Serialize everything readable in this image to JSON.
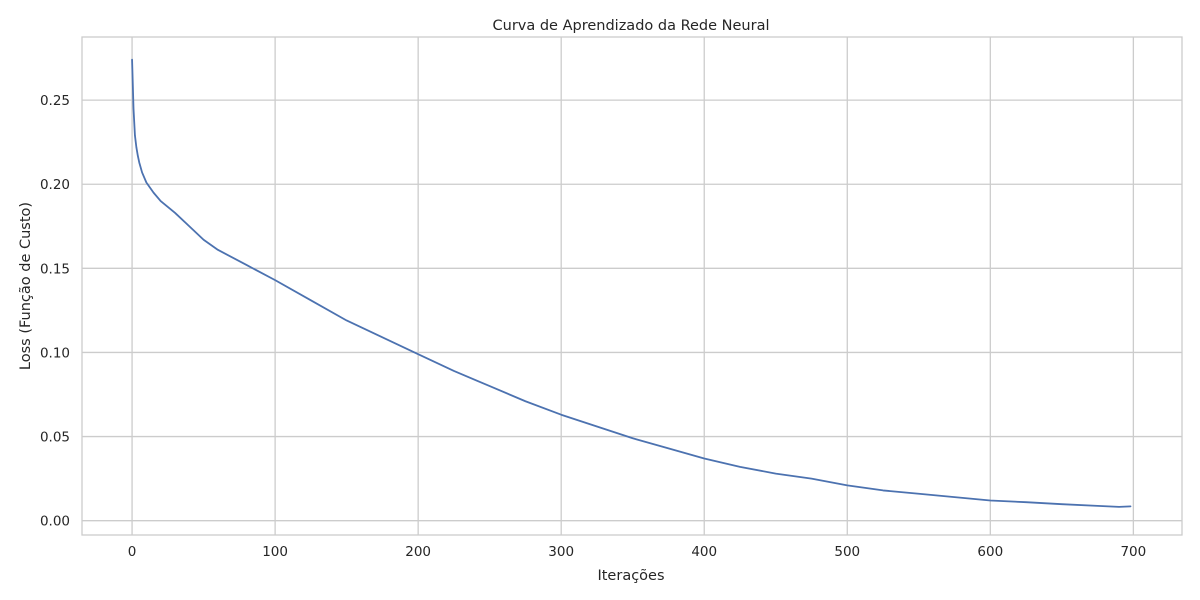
{
  "chart_data": {
    "type": "line",
    "title": "Curva de Aprendizado da Rede Neural",
    "xlabel": "Iterações",
    "ylabel": "Loss (Função de Custo)",
    "xlim": [
      -35,
      734
    ],
    "ylim": [
      -0.0085,
      0.2875
    ],
    "xticks": [
      0,
      100,
      200,
      300,
      400,
      500,
      600,
      700
    ],
    "yticks": [
      0.0,
      0.05,
      0.1,
      0.15,
      0.2,
      0.25
    ],
    "xtick_labels": [
      "0",
      "100",
      "200",
      "300",
      "400",
      "500",
      "600",
      "700"
    ],
    "ytick_labels": [
      "0.00",
      "0.05",
      "0.10",
      "0.15",
      "0.20",
      "0.25"
    ],
    "grid": true,
    "legend": "none",
    "series": [
      {
        "color": "#4c72b0",
        "x": [
          0,
          1,
          2,
          3,
          4,
          5,
          7,
          10,
          15,
          20,
          30,
          40,
          50,
          60,
          80,
          100,
          125,
          150,
          175,
          200,
          225,
          250,
          275,
          300,
          325,
          350,
          375,
          400,
          425,
          450,
          475,
          500,
          525,
          550,
          575,
          600,
          625,
          650,
          675,
          690,
          698
        ],
        "values": [
          0.274,
          0.245,
          0.229,
          0.222,
          0.217,
          0.213,
          0.207,
          0.201,
          0.195,
          0.19,
          0.183,
          0.175,
          0.167,
          0.161,
          0.152,
          0.143,
          0.131,
          0.119,
          0.109,
          0.099,
          0.089,
          0.08,
          0.071,
          0.063,
          0.056,
          0.049,
          0.043,
          0.037,
          0.032,
          0.028,
          0.025,
          0.021,
          0.018,
          0.016,
          0.014,
          0.012,
          0.011,
          0.0098,
          0.0088,
          0.0082,
          0.0085
        ]
      }
    ]
  }
}
